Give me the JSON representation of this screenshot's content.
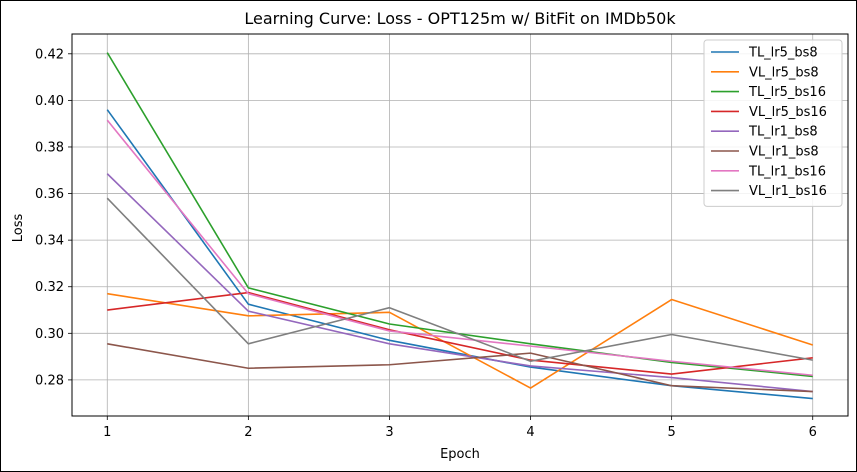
{
  "chart_data": {
    "type": "line",
    "title": "Learning Curve: Loss - OPT125m w/ BitFit on IMDb50k",
    "xlabel": "Epoch",
    "ylabel": "Loss",
    "x": [
      1,
      2,
      3,
      4,
      5,
      6
    ],
    "xticks": [
      "1",
      "2",
      "3",
      "4",
      "5",
      "6"
    ],
    "yticks": [
      "0.28",
      "0.30",
      "0.32",
      "0.34",
      "0.36",
      "0.38",
      "0.40",
      "0.42"
    ],
    "ytick_values": [
      0.28,
      0.3,
      0.32,
      0.34,
      0.36,
      0.38,
      0.4,
      0.42
    ],
    "xlim": [
      0.75,
      6.25
    ],
    "ylim": [
      0.2645,
      0.4285
    ],
    "grid": true,
    "legend_position": "top-right",
    "series": [
      {
        "name": "TL_lr5_bs8",
        "color": "#1f77b4",
        "values": [
          0.396,
          0.3125,
          0.297,
          0.2855,
          0.2775,
          0.272
        ]
      },
      {
        "name": "VL_lr5_bs8",
        "color": "#ff7f0e",
        "values": [
          0.317,
          0.3075,
          0.309,
          0.2765,
          0.3145,
          0.295
        ]
      },
      {
        "name": "TL_lr5_bs16",
        "color": "#2ca02c",
        "values": [
          0.4205,
          0.3195,
          0.304,
          0.2955,
          0.2875,
          0.2815
        ]
      },
      {
        "name": "VL_lr5_bs16",
        "color": "#d62728",
        "values": [
          0.31,
          0.3175,
          0.3015,
          0.2885,
          0.2825,
          0.2895
        ]
      },
      {
        "name": "TL_lr1_bs8",
        "color": "#9467bd",
        "values": [
          0.3685,
          0.3095,
          0.2955,
          0.286,
          0.281,
          0.275
        ]
      },
      {
        "name": "VL_lr1_bs8",
        "color": "#8c564b",
        "values": [
          0.2955,
          0.285,
          0.2865,
          0.2915,
          0.2775,
          0.275
        ]
      },
      {
        "name": "TL_lr1_bs16",
        "color": "#e377c2",
        "values": [
          0.3915,
          0.317,
          0.301,
          0.2945,
          0.288,
          0.282
        ]
      },
      {
        "name": "VL_lr1_bs16",
        "color": "#7f7f7f",
        "values": [
          0.358,
          0.2955,
          0.311,
          0.288,
          0.2995,
          0.2885
        ]
      }
    ]
  }
}
